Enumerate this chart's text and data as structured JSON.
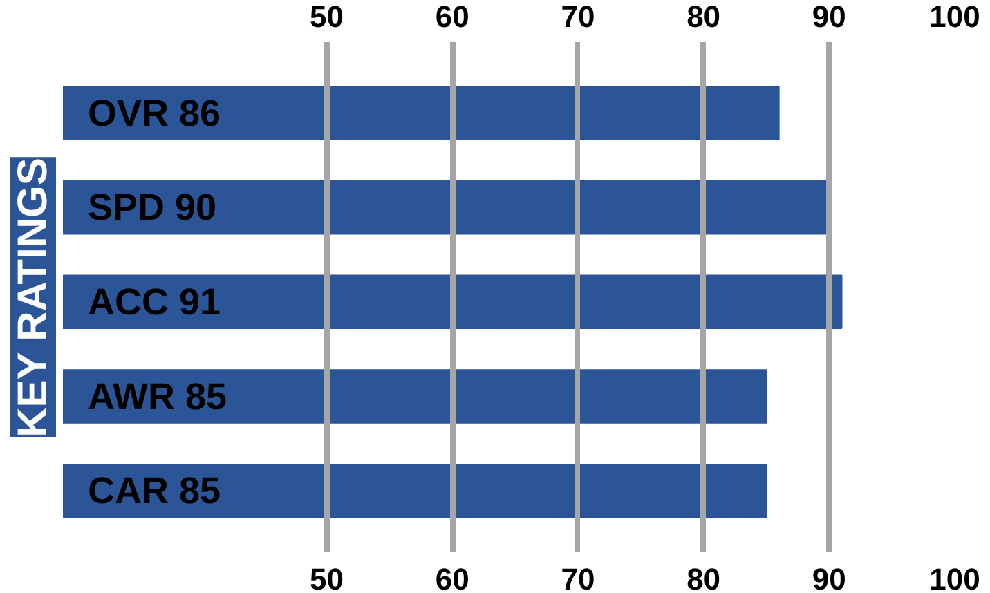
{
  "chart_data": {
    "type": "bar",
    "orientation": "horizontal",
    "title": "KEY RATINGS",
    "categories": [
      "OVR 86",
      "SPD 90",
      "ACC 91",
      "AWR 85",
      "CAR 85"
    ],
    "values": [
      86,
      90,
      91,
      85,
      85
    ],
    "color": "#2b5597",
    "xlim": [
      29,
      100
    ],
    "xticks": [
      50,
      60,
      70,
      80,
      90,
      100
    ],
    "x2lim": [
      29,
      100
    ],
    "x2ticks": [
      50,
      60,
      70,
      80,
      90,
      100
    ],
    "grid": "x"
  }
}
